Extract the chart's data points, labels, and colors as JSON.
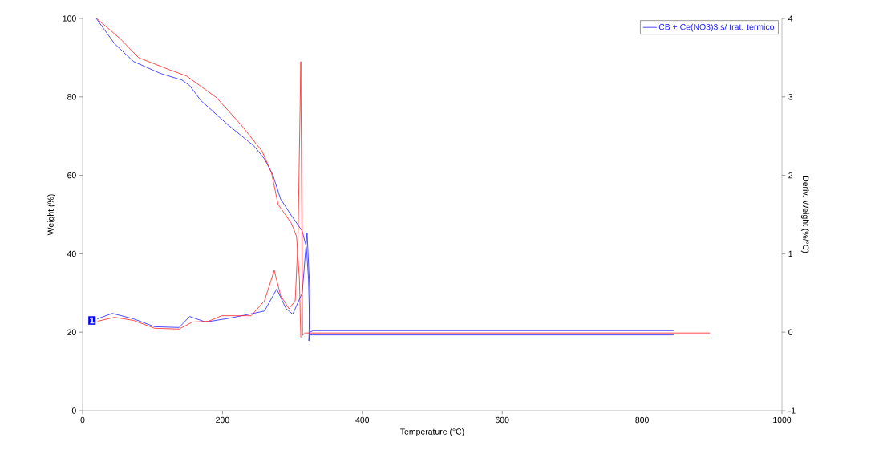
{
  "chart_data": {
    "type": "line",
    "xlabel": "Temperature (°C)",
    "ylabel": "Weight (%)",
    "y2label": "Deriv. Weight (%/°C)",
    "xlim": [
      0,
      1000
    ],
    "xticks": [
      0,
      200,
      400,
      600,
      800,
      1000
    ],
    "ylim": [
      0,
      100
    ],
    "yticks": [
      0,
      20,
      40,
      60,
      80,
      100
    ],
    "y2lim": [
      -1,
      4
    ],
    "y2ticks": [
      -1,
      0,
      1,
      2,
      3,
      4
    ],
    "grid": false,
    "legend": "top right",
    "annotations": [
      "1"
    ],
    "series": [
      {
        "name": "CB + Ce(NO3)3 s/ trat. termico",
        "color": "#2020ff",
        "x": [
          19.5,
          46,
          73,
          111,
          142,
          153,
          169,
          207,
          245,
          260,
          272,
          283,
          298,
          314,
          320,
          323,
          325,
          845
        ],
        "values": [
          100,
          93.5,
          89,
          86,
          84.3,
          82.9,
          79.1,
          73,
          67.5,
          64.2,
          60.1,
          54,
          49.9,
          45.8,
          41.7,
          33.5,
          19.3,
          19.3
        ]
      },
      {
        "color": "#ff2020",
        "x": [
          20,
          54,
          80,
          123,
          149,
          191.5,
          226,
          256.5,
          270,
          279.5,
          298.5,
          306,
          310,
          312,
          897
        ],
        "values": [
          100,
          94.8,
          90,
          87,
          85.3,
          79.8,
          73,
          66.2,
          60.7,
          52.6,
          47.8,
          44.4,
          33.5,
          18.5,
          18.5
        ]
      },
      {
        "color": "#2020ff",
        "axis": "y2",
        "x": [
          21,
          42.4,
          73,
          103,
          138,
          153,
          176,
          211,
          260,
          277.5,
          291,
          300.5,
          314,
          321,
          325,
          323.5,
          325,
          330,
          845
        ],
        "values": [
          0.17,
          0.24,
          0.17,
          0.07,
          0.06,
          0.2,
          0.13,
          0.18,
          0.27,
          0.55,
          0.3,
          0.23,
          0.5,
          1.27,
          0.5,
          -0.11,
          0.0,
          0.02,
          0.02
        ]
      },
      {
        "color": "#ff2020",
        "axis": "y2",
        "x": [
          21.4,
          46,
          73,
          103,
          138,
          157,
          180,
          199,
          241,
          260,
          274,
          283,
          295,
          304,
          308,
          312,
          314.5,
          318,
          897
        ],
        "values": [
          0.14,
          0.19,
          0.15,
          0.05,
          0.04,
          0.13,
          0.14,
          0.21,
          0.21,
          0.4,
          0.79,
          0.47,
          0.3,
          0.4,
          1.18,
          3.45,
          -0.04,
          -0.01,
          -0.01
        ]
      }
    ]
  }
}
